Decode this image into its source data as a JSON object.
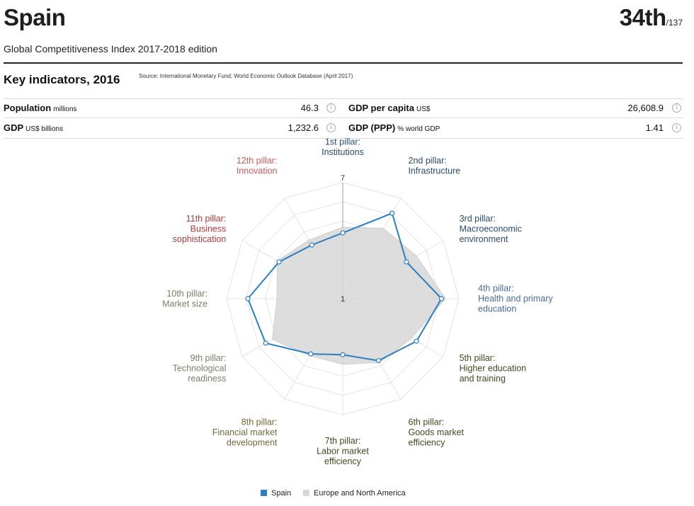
{
  "header": {
    "country": "Spain",
    "rank": "34th",
    "rank_total": "/137",
    "subtitle": "Global Competitiveness Index 2017-2018 edition"
  },
  "indicators": {
    "title": "Key indicators, 2016",
    "source": "Source: International Monetary Fund; World Economic Outlook Database (April 2017)",
    "items": [
      {
        "label": "Population",
        "unit": "millions",
        "value": "46.3"
      },
      {
        "label": "GDP per capita",
        "unit": "US$",
        "value": "26,608.9"
      },
      {
        "label": "GDP",
        "unit": "US$ billions",
        "value": "1,232.6"
      },
      {
        "label": "GDP (PPP)",
        "unit": "% world GDP",
        "value": "1.41"
      }
    ],
    "info_icon": "info-icon"
  },
  "chart_data": {
    "type": "radar",
    "scale_min": 1,
    "scale_max": 7,
    "scale_labels": [
      "7",
      "1"
    ],
    "axes": [
      {
        "label": [
          "1st pillar:",
          "Institutions"
        ],
        "color": "#2a4a6e"
      },
      {
        "label": [
          "2nd pillar:",
          "Infrastructure"
        ],
        "color": "#2a4a6e"
      },
      {
        "label": [
          "3rd pillar:",
          "Macroeconomic",
          "environment"
        ],
        "color": "#2a4a6e"
      },
      {
        "label": [
          "4th pillar:",
          "Health and primary",
          "education"
        ],
        "color": "#4a6a9e"
      },
      {
        "label": [
          "5th pillar:",
          "Higher education",
          "and training"
        ],
        "color": "#3d4a1e"
      },
      {
        "label": [
          "6th pillar:",
          "Goods market",
          "efficiency"
        ],
        "color": "#3d4a1e"
      },
      {
        "label": [
          "7th pillar:",
          "Labor market",
          "efficiency"
        ],
        "color": "#3d4a1e"
      },
      {
        "label": [
          "8th pillar:",
          "Financial market",
          "development"
        ],
        "color": "#6f6a3a"
      },
      {
        "label": [
          "9th pillar:",
          "Technological",
          "readiness"
        ],
        "color": "#7a8068"
      },
      {
        "label": [
          "10th pillar:",
          "Market size"
        ],
        "color": "#7a8068"
      },
      {
        "label": [
          "11th pillar:",
          "Business",
          "sophistication"
        ],
        "color": "#b23a3a"
      },
      {
        "label": [
          "12th pillar:",
          "Innovation"
        ],
        "color": "#c85a5a"
      }
    ],
    "series": [
      {
        "name": "Spain",
        "color": "#2b7fc1",
        "values": [
          4.4,
          6.1,
          4.8,
          6.1,
          5.4,
          4.7,
          3.9,
          4.3,
          5.6,
          5.9,
          4.8,
          4.2
        ]
      },
      {
        "name": "Europe and North America",
        "color": "#d7d7d7",
        "values": [
          4.7,
          5.2,
          5.4,
          6.3,
          5.1,
          4.8,
          4.4,
          4.4,
          5.2,
          4.4,
          4.9,
          4.5
        ]
      }
    ]
  }
}
